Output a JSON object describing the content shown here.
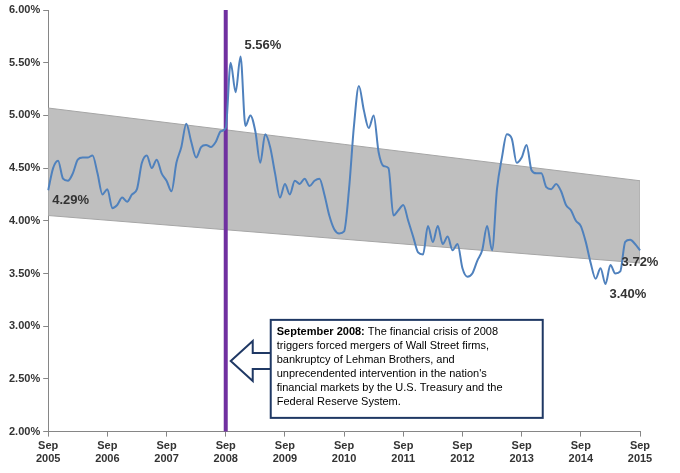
{
  "chart_data": {
    "type": "line",
    "categories": [
      "Sep 2005",
      null,
      null,
      null,
      null,
      null,
      null,
      null,
      null,
      null,
      null,
      null,
      "Sep 2006",
      null,
      null,
      null,
      null,
      null,
      null,
      null,
      null,
      null,
      null,
      null,
      "Sep 2007",
      null,
      null,
      null,
      null,
      null,
      null,
      null,
      null,
      null,
      null,
      null,
      "Sep 2008",
      null,
      null,
      null,
      null,
      null,
      null,
      null,
      null,
      null,
      null,
      null,
      "Sep 2009",
      null,
      null,
      null,
      null,
      null,
      null,
      null,
      null,
      null,
      null,
      null,
      "Sep 2010",
      null,
      null,
      null,
      null,
      null,
      null,
      null,
      null,
      null,
      null,
      null,
      "Sep 2011",
      null,
      null,
      null,
      null,
      null,
      null,
      null,
      null,
      null,
      null,
      null,
      "Sep 2012",
      null,
      null,
      null,
      null,
      null,
      null,
      null,
      null,
      null,
      null,
      null,
      "Sep 2013",
      null,
      null,
      null,
      null,
      null,
      null,
      null,
      null,
      null,
      null,
      null,
      "Sep 2014",
      null,
      null,
      null,
      null,
      null,
      null,
      null,
      null,
      null,
      null,
      null,
      "Sep 2015"
    ],
    "values": [
      4.29,
      4.5,
      4.57,
      4.4,
      4.38,
      4.45,
      4.58,
      4.6,
      4.6,
      4.62,
      4.45,
      4.25,
      4.3,
      4.12,
      4.15,
      4.22,
      4.18,
      4.25,
      4.3,
      4.55,
      4.62,
      4.5,
      4.58,
      4.45,
      4.38,
      4.28,
      4.55,
      4.7,
      4.92,
      4.75,
      4.6,
      4.7,
      4.72,
      4.7,
      4.75,
      4.85,
      4.88,
      5.5,
      5.22,
      5.56,
      4.9,
      5.0,
      4.85,
      4.55,
      4.82,
      4.7,
      4.45,
      4.22,
      4.35,
      4.25,
      4.38,
      4.35,
      4.4,
      4.33,
      4.38,
      4.4,
      4.25,
      4.05,
      3.92,
      3.88,
      3.9,
      4.3,
      4.9,
      5.28,
      5.05,
      4.88,
      5.0,
      4.65,
      4.52,
      4.5,
      4.05,
      4.1,
      4.15,
      4.0,
      3.85,
      3.7,
      3.68,
      3.95,
      3.8,
      3.95,
      3.78,
      3.85,
      3.72,
      3.78,
      3.55,
      3.47,
      3.5,
      3.62,
      3.72,
      3.95,
      3.72,
      4.3,
      4.6,
      4.82,
      4.78,
      4.55,
      4.6,
      4.72,
      4.48,
      4.45,
      4.45,
      4.32,
      4.3,
      4.35,
      4.28,
      4.15,
      4.1,
      4.0,
      3.95,
      3.8,
      3.6,
      3.45,
      3.55,
      3.4,
      3.58,
      3.5,
      3.52,
      3.8,
      3.82,
      3.78,
      3.72
    ],
    "value_labels": [
      "4.29%",
      null,
      null,
      null,
      null,
      null,
      null,
      null,
      null,
      null,
      null,
      null,
      null,
      null,
      null,
      null,
      null,
      null,
      null,
      null,
      null,
      null,
      null,
      null,
      null,
      null,
      null,
      null,
      null,
      null,
      null,
      null,
      null,
      null,
      null,
      null,
      null,
      null,
      null,
      "5.56%",
      null,
      null,
      null,
      null,
      null,
      null,
      null,
      null,
      null,
      null,
      null,
      null,
      null,
      null,
      null,
      null,
      null,
      null,
      null,
      null,
      null,
      null,
      null,
      null,
      null,
      null,
      null,
      null,
      null,
      null,
      null,
      null,
      null,
      null,
      null,
      null,
      null,
      null,
      null,
      null,
      null,
      null,
      null,
      null,
      null,
      null,
      null,
      null,
      null,
      null,
      null,
      null,
      null,
      null,
      null,
      null,
      null,
      null,
      null,
      null,
      null,
      null,
      null,
      null,
      null,
      null,
      null,
      null,
      null,
      null,
      null,
      null,
      null,
      "3.40%",
      null,
      null,
      null,
      null,
      null,
      null,
      "3.72%"
    ],
    "color": "#4f81bd",
    "ylim": [
      2,
      6
    ],
    "yticks": [
      {
        "value": 2,
        "label": "2.00%"
      },
      {
        "value": 2.5,
        "label": "2.50%"
      },
      {
        "value": 3,
        "label": "3.00%"
      },
      {
        "value": 3.5,
        "label": "3.50%"
      },
      {
        "value": 4,
        "label": "4.00%"
      },
      {
        "value": 4.5,
        "label": "4.50%"
      },
      {
        "value": 5,
        "label": "5.00%"
      },
      {
        "value": 5.5,
        "label": "5.50%"
      },
      {
        "value": 6,
        "label": "6.00%"
      }
    ],
    "grid": false,
    "band": {
      "lower": [
        4.05,
        3.6
      ],
      "upper": [
        5.07,
        4.38
      ],
      "color": "#bfbfbf"
    },
    "annotations": [
      {
        "x": "Sep 2008",
        "color": "#7030a0",
        "heading": "September 2008:",
        "lines": [
          "The financial crisis of 2008",
          "triggers forced mergers of Wall Street firms,",
          "bankruptcy of Lehman Brothers, and",
          "unprecendented intervention in the nation's",
          "financial markets by the U.S. Treasury and the",
          "Federal Reserve System."
        ]
      }
    ]
  }
}
